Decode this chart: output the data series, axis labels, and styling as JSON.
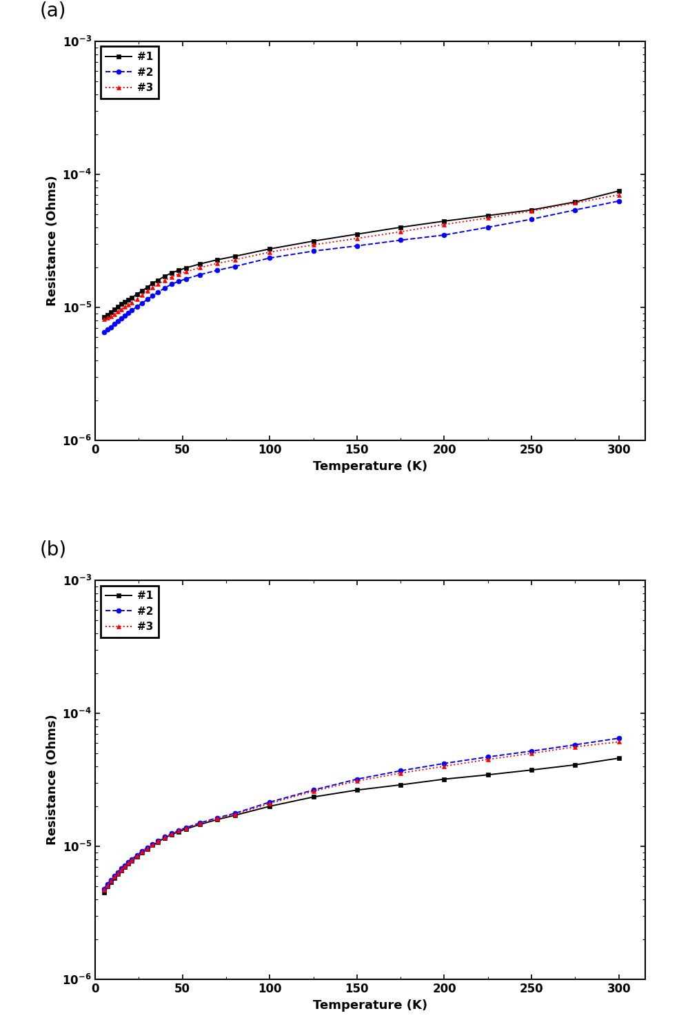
{
  "panel_a": {
    "label": "(a)",
    "series": [
      {
        "name": "#1",
        "color": "#000000",
        "linestyle": "-",
        "marker": "s",
        "markersize": 5,
        "linewidth": 1.4,
        "x": [
          5,
          7,
          9,
          11,
          13,
          15,
          17,
          19,
          21,
          24,
          27,
          30,
          33,
          36,
          40,
          44,
          48,
          52,
          60,
          70,
          80,
          100,
          125,
          150,
          175,
          200,
          225,
          250,
          275,
          300
        ],
        "y": [
          8.5e-06,
          8.8e-06,
          9.2e-06,
          9.6e-06,
          1.01e-05,
          1.06e-05,
          1.1e-05,
          1.14e-05,
          1.18e-05,
          1.26e-05,
          1.33e-05,
          1.42e-05,
          1.52e-05,
          1.6e-05,
          1.72e-05,
          1.82e-05,
          1.9e-05,
          1.98e-05,
          2.12e-05,
          2.28e-05,
          2.42e-05,
          2.75e-05,
          3.15e-05,
          3.55e-05,
          4e-05,
          4.45e-05,
          4.9e-05,
          5.4e-05,
          6.2e-05,
          7.5e-05
        ]
      },
      {
        "name": "#2",
        "color": "#0000FF",
        "linestyle": "--",
        "marker": "o",
        "markersize": 5,
        "linewidth": 1.4,
        "x": [
          5,
          7,
          9,
          11,
          13,
          15,
          17,
          19,
          21,
          24,
          27,
          30,
          33,
          36,
          40,
          44,
          48,
          52,
          60,
          70,
          80,
          100,
          125,
          150,
          175,
          200,
          225,
          250,
          275,
          300
        ],
        "y": [
          6.5e-06,
          6.8e-06,
          7.1e-06,
          7.5e-06,
          7.9e-06,
          8.3e-06,
          8.7e-06,
          9.1e-06,
          9.5e-06,
          1.01e-05,
          1.08e-05,
          1.15e-05,
          1.22e-05,
          1.3e-05,
          1.4e-05,
          1.5e-05,
          1.57e-05,
          1.64e-05,
          1.76e-05,
          1.9e-05,
          2.03e-05,
          2.35e-05,
          2.65e-05,
          2.9e-05,
          3.2e-05,
          3.5e-05,
          4e-05,
          4.6e-05,
          5.4e-05,
          6.3e-05
        ]
      },
      {
        "name": "#3",
        "color": "#FF0000",
        "linestyle": ":",
        "marker": "^",
        "markersize": 5,
        "linewidth": 1.4,
        "x": [
          5,
          7,
          9,
          11,
          13,
          15,
          17,
          19,
          21,
          24,
          27,
          30,
          33,
          36,
          40,
          44,
          48,
          52,
          60,
          70,
          80,
          100,
          125,
          150,
          175,
          200,
          225,
          250,
          275,
          300
        ],
        "y": [
          8.2e-06,
          8.4e-06,
          8.6e-06,
          8.9e-06,
          9.3e-06,
          9.7e-06,
          1.01e-05,
          1.05e-05,
          1.09e-05,
          1.16e-05,
          1.24e-05,
          1.33e-05,
          1.41e-05,
          1.5e-05,
          1.6e-05,
          1.7e-05,
          1.78e-05,
          1.85e-05,
          1.99e-05,
          2.14e-05,
          2.28e-05,
          2.6e-05,
          2.95e-05,
          3.3e-05,
          3.7e-05,
          4.2e-05,
          4.7e-05,
          5.3e-05,
          6.1e-05,
          7e-05
        ]
      }
    ],
    "xlabel": "Temperature (K)",
    "ylabel": "Resistance (Ohms)",
    "xlim": [
      0,
      315
    ],
    "ylim": [
      1e-06,
      0.001
    ],
    "xticks": [
      0,
      50,
      100,
      150,
      200,
      250,
      300
    ]
  },
  "panel_b": {
    "label": "(b)",
    "series": [
      {
        "name": "#1",
        "color": "#000000",
        "linestyle": "-",
        "marker": "s",
        "markersize": 5,
        "linewidth": 1.4,
        "x": [
          5,
          7,
          9,
          11,
          13,
          15,
          17,
          19,
          21,
          24,
          27,
          30,
          33,
          36,
          40,
          44,
          48,
          52,
          60,
          70,
          80,
          100,
          125,
          150,
          175,
          200,
          225,
          250,
          275,
          300
        ],
        "y": [
          4.5e-06,
          5e-06,
          5.4e-06,
          5.8e-06,
          6.2e-06,
          6.6e-06,
          7e-06,
          7.4e-06,
          7.8e-06,
          8.4e-06,
          9e-06,
          9.6e-06,
          1.02e-05,
          1.08e-05,
          1.16e-05,
          1.23e-05,
          1.29e-05,
          1.35e-05,
          1.46e-05,
          1.59e-05,
          1.71e-05,
          2e-05,
          2.35e-05,
          2.65e-05,
          2.9e-05,
          3.2e-05,
          3.45e-05,
          3.75e-05,
          4.1e-05,
          4.6e-05
        ]
      },
      {
        "name": "#2",
        "color": "#0000FF",
        "linestyle": "--",
        "marker": "o",
        "markersize": 5,
        "linewidth": 1.4,
        "x": [
          5,
          7,
          9,
          11,
          13,
          15,
          17,
          19,
          21,
          24,
          27,
          30,
          33,
          36,
          40,
          44,
          48,
          52,
          60,
          70,
          80,
          100,
          125,
          150,
          175,
          200,
          225,
          250,
          275,
          300
        ],
        "y": [
          4.8e-06,
          5.2e-06,
          5.6e-06,
          6e-06,
          6.4e-06,
          6.8e-06,
          7.2e-06,
          7.6e-06,
          8e-06,
          8.6e-06,
          9.2e-06,
          9.8e-06,
          1.04e-05,
          1.1e-05,
          1.18e-05,
          1.25e-05,
          1.32e-05,
          1.38e-05,
          1.5e-05,
          1.64e-05,
          1.77e-05,
          2.15e-05,
          2.65e-05,
          3.2e-05,
          3.7e-05,
          4.2e-05,
          4.7e-05,
          5.2e-05,
          5.8e-05,
          6.5e-05
        ]
      },
      {
        "name": "#3",
        "color": "#FF0000",
        "linestyle": ":",
        "marker": "^",
        "markersize": 5,
        "linewidth": 1.4,
        "x": [
          5,
          7,
          9,
          11,
          13,
          15,
          17,
          19,
          21,
          24,
          27,
          30,
          33,
          36,
          40,
          44,
          48,
          52,
          60,
          70,
          80,
          100,
          125,
          150,
          175,
          200,
          225,
          250,
          275,
          300
        ],
        "y": [
          4.7e-06,
          5.1e-06,
          5.5e-06,
          5.9e-06,
          6.3e-06,
          6.7e-06,
          7.1e-06,
          7.5e-06,
          7.9e-06,
          8.5e-06,
          9.1e-06,
          9.7e-06,
          1.03e-05,
          1.09e-05,
          1.17e-05,
          1.24e-05,
          1.31e-05,
          1.37e-05,
          1.48e-05,
          1.62e-05,
          1.74e-05,
          2.1e-05,
          2.6e-05,
          3.1e-05,
          3.55e-05,
          4e-05,
          4.5e-05,
          5e-05,
          5.6e-05,
          6.1e-05
        ]
      }
    ],
    "xlabel": "Temperature (K)",
    "ylabel": "Resistance (Ohms)",
    "xlim": [
      0,
      315
    ],
    "ylim": [
      1e-06,
      0.001
    ],
    "xticks": [
      0,
      50,
      100,
      150,
      200,
      250,
      300
    ]
  },
  "figure_bgcolor": "#FFFFFF",
  "label_fontsize": 13,
  "tick_fontsize": 12,
  "legend_fontsize": 11,
  "panel_label_fontsize": 20,
  "legend_border_lw": 2.0
}
